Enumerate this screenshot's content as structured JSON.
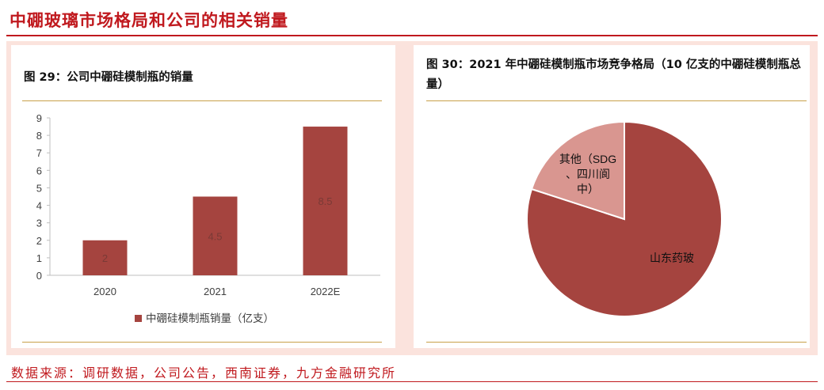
{
  "header": {
    "title": "中硼玻璃市场格局和公司的相关销量"
  },
  "figure_left": {
    "caption": "图 29：公司中硼硅模制瓶的销量"
  },
  "figure_right": {
    "caption": "图 30：2021 年中硼硅模制瓶市场竞争格局（10 亿支的中硼硅模制瓶总量）"
  },
  "footer": {
    "source": "数据来源：调研数据，公司公告，西南证券，九方金融研究所"
  },
  "colors": {
    "accent": "#c0191e",
    "bar": "#a5443f",
    "pie_major": "#a5443f",
    "pie_minor": "#d99690"
  },
  "chart_data": [
    {
      "type": "bar",
      "categories": [
        "2020",
        "2021",
        "2022E"
      ],
      "series": [
        {
          "name": "中硼硅模制瓶销量（亿支）",
          "values": [
            2,
            4.5,
            8.5
          ]
        }
      ],
      "data_labels": [
        "2",
        "4.5",
        "8.5"
      ],
      "y_ticks": [
        "0",
        "1",
        "2",
        "3",
        "4",
        "5",
        "6",
        "7",
        "8",
        "9"
      ],
      "ylim": [
        0,
        9
      ],
      "grid": false,
      "legend": "bottom"
    },
    {
      "type": "pie",
      "labels": [
        "山东药玻",
        "其他（SDG、四川阆中）"
      ],
      "values": [
        0.8,
        0.2
      ],
      "legend": "none"
    }
  ]
}
